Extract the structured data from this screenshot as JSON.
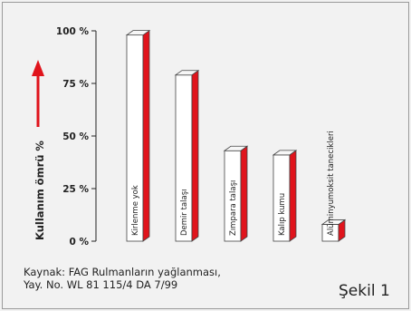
{
  "chart_data": {
    "type": "bar",
    "ylabel": "Kullanım ömrü %",
    "ylim": [
      0,
      100
    ],
    "yticks": [
      0,
      25,
      50,
      75,
      100
    ],
    "ytick_labels": [
      "0 %",
      "25 %",
      "50 %",
      "75 %",
      "100 %"
    ],
    "grid": false,
    "bar_colors": {
      "front": "#ffffff",
      "side": "#e0141c",
      "outline": "#444444"
    },
    "categories": [
      "Kirlenme yok",
      "Demir talaşı",
      "Zımpara talaşı",
      "Kalıp kumu",
      "Alüminyumoksit tanecikleri"
    ],
    "values": [
      98,
      79,
      43,
      41,
      8
    ],
    "arrow_color": "#e0141c"
  },
  "caption": {
    "source_line_1": "Kaynak: FAG Rulmanların yağlanması,",
    "source_line_2": "Yay. No. WL 81 115/4 DA 7/99",
    "figure_label": "Şekil 1"
  }
}
